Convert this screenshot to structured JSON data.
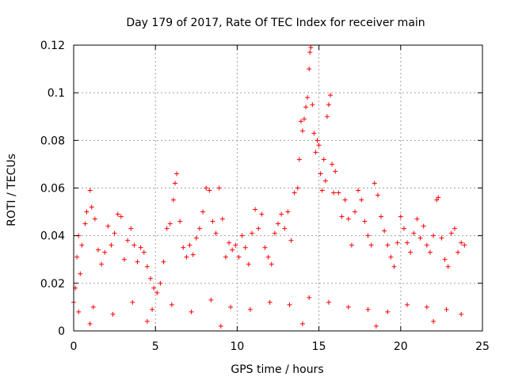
{
  "chart_data": {
    "type": "scatter",
    "title": "Day 179 of 2017, Rate Of TEC Index for receiver main",
    "xlabel": "GPS time / hours",
    "ylabel": "ROTI / TECUs",
    "xlim": [
      0,
      25
    ],
    "ylim": [
      0,
      0.12
    ],
    "xticks": [
      0,
      5,
      10,
      15,
      20,
      25
    ],
    "xtick_labels": [
      "0",
      "5",
      "10",
      "15",
      "20",
      "25"
    ],
    "yticks": [
      0,
      0.02,
      0.04,
      0.06,
      0.08,
      0.1,
      0.12
    ],
    "ytick_labels": [
      "0",
      "0.02",
      "0.04",
      "0.06",
      "0.08",
      "0.1",
      "0.12"
    ],
    "grid": true,
    "marker": "+",
    "color": "#ff0000",
    "series": [
      {
        "name": "ROTI",
        "points": [
          [
            0.0,
            0.012
          ],
          [
            0.1,
            0.018
          ],
          [
            0.2,
            0.031
          ],
          [
            0.3,
            0.04
          ],
          [
            0.4,
            0.024
          ],
          [
            0.5,
            0.036
          ],
          [
            0.7,
            0.045
          ],
          [
            0.8,
            0.05
          ],
          [
            1.0,
            0.059
          ],
          [
            1.1,
            0.052
          ],
          [
            1.3,
            0.047
          ],
          [
            1.5,
            0.034
          ],
          [
            1.7,
            0.028
          ],
          [
            1.9,
            0.033
          ],
          [
            2.1,
            0.044
          ],
          [
            2.3,
            0.036
          ],
          [
            2.5,
            0.041
          ],
          [
            2.7,
            0.049
          ],
          [
            2.9,
            0.048
          ],
          [
            3.1,
            0.03
          ],
          [
            3.3,
            0.038
          ],
          [
            3.5,
            0.043
          ],
          [
            3.7,
            0.036
          ],
          [
            3.9,
            0.029
          ],
          [
            4.1,
            0.035
          ],
          [
            4.3,
            0.033
          ],
          [
            4.5,
            0.027
          ],
          [
            4.7,
            0.022
          ],
          [
            4.9,
            0.018
          ],
          [
            5.1,
            0.016
          ],
          [
            5.3,
            0.02
          ],
          [
            5.5,
            0.029
          ],
          [
            5.7,
            0.043
          ],
          [
            5.9,
            0.045
          ],
          [
            6.1,
            0.055
          ],
          [
            6.2,
            0.062
          ],
          [
            6.3,
            0.066
          ],
          [
            6.5,
            0.046
          ],
          [
            6.7,
            0.035
          ],
          [
            6.9,
            0.031
          ],
          [
            7.1,
            0.036
          ],
          [
            7.3,
            0.032
          ],
          [
            7.5,
            0.039
          ],
          [
            7.7,
            0.043
          ],
          [
            7.9,
            0.05
          ],
          [
            8.1,
            0.06
          ],
          [
            8.3,
            0.059
          ],
          [
            8.5,
            0.046
          ],
          [
            8.7,
            0.041
          ],
          [
            8.9,
            0.06
          ],
          [
            9.1,
            0.047
          ],
          [
            9.3,
            0.031
          ],
          [
            9.5,
            0.037
          ],
          [
            9.7,
            0.034
          ],
          [
            9.9,
            0.036
          ],
          [
            10.1,
            0.031
          ],
          [
            10.3,
            0.04
          ],
          [
            10.5,
            0.035
          ],
          [
            10.7,
            0.028
          ],
          [
            10.9,
            0.041
          ],
          [
            11.1,
            0.051
          ],
          [
            11.3,
            0.043
          ],
          [
            11.5,
            0.049
          ],
          [
            11.7,
            0.035
          ],
          [
            11.9,
            0.031
          ],
          [
            12.1,
            0.028
          ],
          [
            12.3,
            0.041
          ],
          [
            12.5,
            0.045
          ],
          [
            12.7,
            0.049
          ],
          [
            12.9,
            0.043
          ],
          [
            13.1,
            0.05
          ],
          [
            13.3,
            0.038
          ],
          [
            13.5,
            0.058
          ],
          [
            13.7,
            0.06
          ],
          [
            13.8,
            0.072
          ],
          [
            13.9,
            0.088
          ],
          [
            14.0,
            0.084
          ],
          [
            14.1,
            0.089
          ],
          [
            14.2,
            0.094
          ],
          [
            14.3,
            0.098
          ],
          [
            14.4,
            0.11
          ],
          [
            14.45,
            0.117
          ],
          [
            14.5,
            0.119
          ],
          [
            14.6,
            0.095
          ],
          [
            14.7,
            0.083
          ],
          [
            14.8,
            0.075
          ],
          [
            14.9,
            0.08
          ],
          [
            15.0,
            0.078
          ],
          [
            15.1,
            0.066
          ],
          [
            15.2,
            0.059
          ],
          [
            15.3,
            0.072
          ],
          [
            15.4,
            0.063
          ],
          [
            15.5,
            0.09
          ],
          [
            15.6,
            0.095
          ],
          [
            15.7,
            0.099
          ],
          [
            15.8,
            0.07
          ],
          [
            15.9,
            0.058
          ],
          [
            16.0,
            0.067
          ],
          [
            16.2,
            0.058
          ],
          [
            16.4,
            0.048
          ],
          [
            16.6,
            0.055
          ],
          [
            16.8,
            0.047
          ],
          [
            17.0,
            0.036
          ],
          [
            17.2,
            0.05
          ],
          [
            17.4,
            0.059
          ],
          [
            17.6,
            0.055
          ],
          [
            17.8,
            0.046
          ],
          [
            18.0,
            0.04
          ],
          [
            18.2,
            0.036
          ],
          [
            18.4,
            0.062
          ],
          [
            18.6,
            0.057
          ],
          [
            18.8,
            0.048
          ],
          [
            19.0,
            0.042
          ],
          [
            19.2,
            0.036
          ],
          [
            19.4,
            0.031
          ],
          [
            19.6,
            0.027
          ],
          [
            19.8,
            0.037
          ],
          [
            20.0,
            0.048
          ],
          [
            20.2,
            0.043
          ],
          [
            20.4,
            0.037
          ],
          [
            20.6,
            0.033
          ],
          [
            20.8,
            0.041
          ],
          [
            21.0,
            0.047
          ],
          [
            21.2,
            0.039
          ],
          [
            21.4,
            0.044
          ],
          [
            21.6,
            0.036
          ],
          [
            21.8,
            0.033
          ],
          [
            22.0,
            0.04
          ],
          [
            22.2,
            0.055
          ],
          [
            22.3,
            0.056
          ],
          [
            22.5,
            0.039
          ],
          [
            22.7,
            0.03
          ],
          [
            22.9,
            0.027
          ],
          [
            23.1,
            0.041
          ],
          [
            23.3,
            0.043
          ],
          [
            23.5,
            0.033
          ],
          [
            23.7,
            0.037
          ],
          [
            23.9,
            0.036
          ],
          [
            0.3,
            0.008
          ],
          [
            1.2,
            0.01
          ],
          [
            2.4,
            0.007
          ],
          [
            3.6,
            0.012
          ],
          [
            4.8,
            0.009
          ],
          [
            6.0,
            0.011
          ],
          [
            7.2,
            0.008
          ],
          [
            8.4,
            0.013
          ],
          [
            9.6,
            0.01
          ],
          [
            10.8,
            0.009
          ],
          [
            12.0,
            0.012
          ],
          [
            13.2,
            0.011
          ],
          [
            14.4,
            0.014
          ],
          [
            15.6,
            0.012
          ],
          [
            16.8,
            0.01
          ],
          [
            18.0,
            0.009
          ],
          [
            19.2,
            0.008
          ],
          [
            20.4,
            0.011
          ],
          [
            21.6,
            0.01
          ],
          [
            22.8,
            0.009
          ],
          [
            23.7,
            0.007
          ],
          [
            1.0,
            0.003
          ],
          [
            4.5,
            0.004
          ],
          [
            9.0,
            0.002
          ],
          [
            14.0,
            0.003
          ],
          [
            18.5,
            0.002
          ],
          [
            22.0,
            0.004
          ]
        ]
      }
    ]
  }
}
